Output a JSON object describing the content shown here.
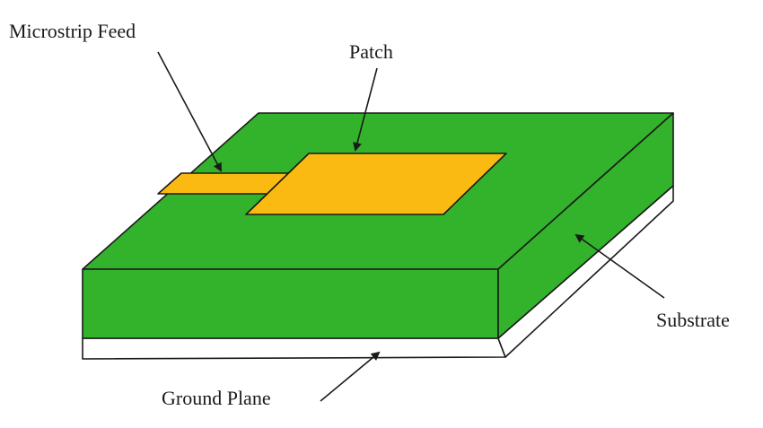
{
  "labels": {
    "microstrip_feed": "Microstrip Feed",
    "patch": "Patch",
    "substrate": "Substrate",
    "ground_plane": "Ground Plane"
  },
  "colors": {
    "substrate": "#33b32b",
    "patch": "#fbba12",
    "ground_plane": "#ffffff",
    "outline": "#1a1a1a",
    "background": "#ffffff"
  }
}
